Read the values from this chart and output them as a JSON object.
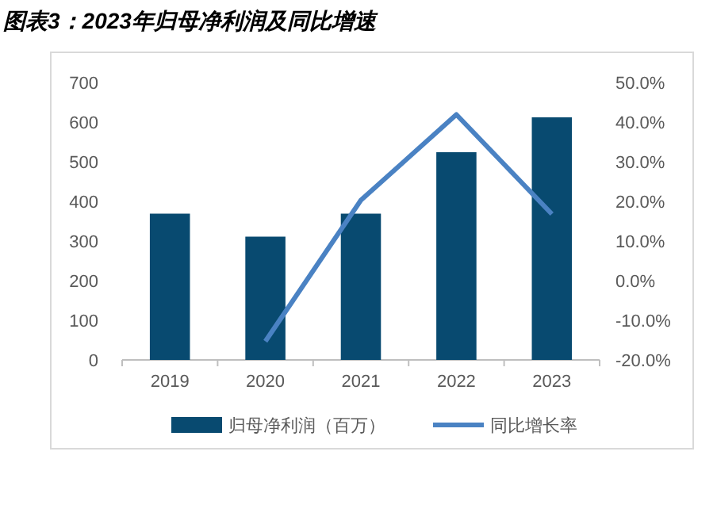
{
  "chart_data": {
    "type": "bar",
    "title": "图表3：2023年归母净利润及同比增速",
    "categories": [
      "2019",
      "2020",
      "2021",
      "2022",
      "2023"
    ],
    "series": [
      {
        "name": "归母净利润（百万）",
        "color": "#084a70",
        "values": [
          369,
          311,
          369,
          524,
          612
        ]
      },
      {
        "name": "同比增长率",
        "type": "line",
        "axis": "y2",
        "color": "#4a82c3",
        "values": [
          null,
          -15.3,
          20.3,
          41.9,
          16.8
        ]
      }
    ],
    "ylim": [
      0,
      700
    ],
    "yticks": [
      0,
      100,
      200,
      300,
      400,
      500,
      600,
      700
    ],
    "y2lim": [
      -20,
      50
    ],
    "y2ticks": [
      {
        "value": -20,
        "label": "-20.0%"
      },
      {
        "value": -10,
        "label": "-10.0%"
      },
      {
        "value": 0,
        "label": "0.0%"
      },
      {
        "value": 10,
        "label": "10.0%"
      },
      {
        "value": 20,
        "label": "20.0%"
      },
      {
        "value": 30,
        "label": "30.0%"
      },
      {
        "value": 40,
        "label": "40.0%"
      },
      {
        "value": 50,
        "label": "50.0%"
      }
    ],
    "legend": "bottom"
  }
}
